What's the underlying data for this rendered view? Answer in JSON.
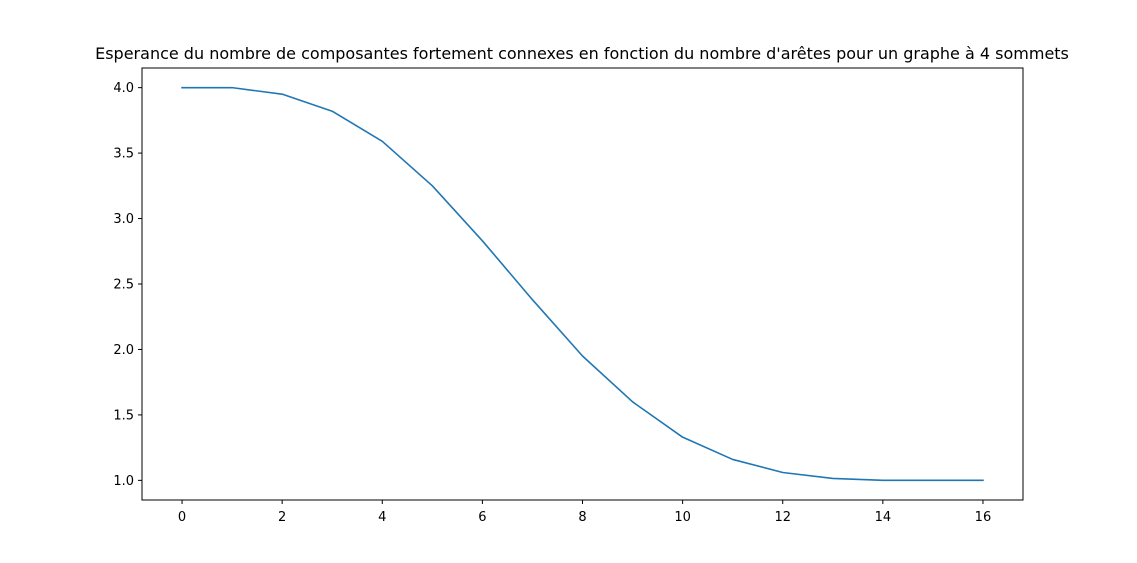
{
  "chart_data": {
    "type": "line",
    "title": "Esperance du nombre de composantes fortement connexes en fonction du nombre d'arêtes pour un graphe à 4 sommets",
    "xlabel": "",
    "ylabel": "",
    "xlim": [
      -0.8,
      16.8
    ],
    "ylim": [
      0.85,
      4.15
    ],
    "xticks": [
      0,
      2,
      4,
      6,
      8,
      10,
      12,
      14,
      16
    ],
    "yticks": [
      1.0,
      1.5,
      2.0,
      2.5,
      3.0,
      3.5,
      4.0
    ],
    "grid": false,
    "line_color": "#1f77b4",
    "series": [
      {
        "x": [
          0,
          1,
          2,
          3,
          4,
          5,
          6,
          7,
          8,
          9,
          10,
          11,
          12,
          13,
          14,
          15,
          16
        ],
        "y": [
          4.0,
          4.0,
          3.95,
          3.82,
          3.59,
          3.25,
          2.83,
          2.38,
          1.95,
          1.6,
          1.33,
          1.16,
          1.06,
          1.015,
          1.0,
          1.0,
          1.0
        ]
      }
    ]
  }
}
